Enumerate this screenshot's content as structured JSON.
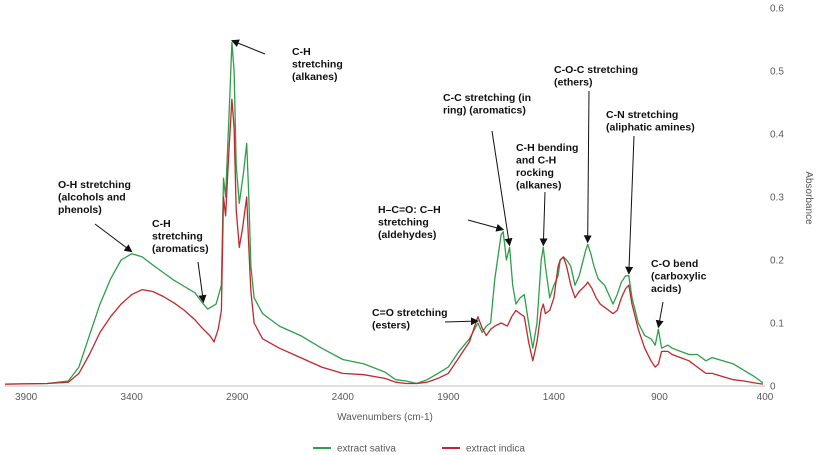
{
  "chart_data": {
    "type": "line",
    "title": "",
    "xlabel": "Wavenumbers (cm-1)",
    "ylabel": "Absorbance",
    "xlim": [
      4000,
      400
    ],
    "ylim": [
      0,
      0.6
    ],
    "x_reversed": true,
    "y_axis_side": "right",
    "grid": false,
    "legend_position": "bottom",
    "x_ticks": [
      "3900",
      "3400",
      "2900",
      "2400",
      "1900",
      "1400",
      "900",
      "400"
    ],
    "y_ticks": [
      "0",
      "0.1",
      "0.2",
      "0.3",
      "0.4",
      "0.5",
      "0.6"
    ],
    "series": [
      {
        "name": "extract sativa",
        "color": "#2e9e4a",
        "points": [
          [
            4000,
            0.003
          ],
          [
            3800,
            0.004
          ],
          [
            3700,
            0.008
          ],
          [
            3650,
            0.03
          ],
          [
            3600,
            0.08
          ],
          [
            3550,
            0.13
          ],
          [
            3500,
            0.17
          ],
          [
            3450,
            0.2
          ],
          [
            3400,
            0.21
          ],
          [
            3350,
            0.205
          ],
          [
            3300,
            0.192
          ],
          [
            3250,
            0.18
          ],
          [
            3200,
            0.168
          ],
          [
            3150,
            0.158
          ],
          [
            3100,
            0.148
          ],
          [
            3060,
            0.13
          ],
          [
            3040,
            0.122
          ],
          [
            3000,
            0.13
          ],
          [
            2975,
            0.16
          ],
          [
            2965,
            0.33
          ],
          [
            2955,
            0.3
          ],
          [
            2935,
            0.46
          ],
          [
            2925,
            0.545
          ],
          [
            2915,
            0.5
          ],
          [
            2905,
            0.35
          ],
          [
            2890,
            0.29
          ],
          [
            2870,
            0.34
          ],
          [
            2855,
            0.385
          ],
          [
            2845,
            0.3
          ],
          [
            2835,
            0.19
          ],
          [
            2820,
            0.14
          ],
          [
            2780,
            0.115
          ],
          [
            2700,
            0.095
          ],
          [
            2600,
            0.08
          ],
          [
            2500,
            0.06
          ],
          [
            2400,
            0.042
          ],
          [
            2300,
            0.035
          ],
          [
            2200,
            0.022
          ],
          [
            2150,
            0.01
          ],
          [
            2100,
            0.008
          ],
          [
            2050,
            0.004
          ],
          [
            2000,
            0.01
          ],
          [
            1950,
            0.02
          ],
          [
            1900,
            0.03
          ],
          [
            1850,
            0.055
          ],
          [
            1800,
            0.075
          ],
          [
            1760,
            0.1
          ],
          [
            1740,
            0.085
          ],
          [
            1720,
            0.095
          ],
          [
            1700,
            0.1
          ],
          [
            1680,
            0.17
          ],
          [
            1650,
            0.24
          ],
          [
            1640,
            0.245
          ],
          [
            1625,
            0.2
          ],
          [
            1610,
            0.22
          ],
          [
            1595,
            0.16
          ],
          [
            1580,
            0.13
          ],
          [
            1560,
            0.14
          ],
          [
            1540,
            0.145
          ],
          [
            1520,
            0.1
          ],
          [
            1500,
            0.06
          ],
          [
            1480,
            0.1
          ],
          [
            1460,
            0.2
          ],
          [
            1450,
            0.22
          ],
          [
            1440,
            0.19
          ],
          [
            1420,
            0.14
          ],
          [
            1400,
            0.16
          ],
          [
            1380,
            0.175
          ],
          [
            1370,
            0.2
          ],
          [
            1355,
            0.205
          ],
          [
            1340,
            0.2
          ],
          [
            1320,
            0.19
          ],
          [
            1300,
            0.16
          ],
          [
            1280,
            0.175
          ],
          [
            1250,
            0.215
          ],
          [
            1240,
            0.225
          ],
          [
            1225,
            0.21
          ],
          [
            1210,
            0.19
          ],
          [
            1190,
            0.17
          ],
          [
            1160,
            0.16
          ],
          [
            1140,
            0.145
          ],
          [
            1120,
            0.13
          ],
          [
            1100,
            0.145
          ],
          [
            1080,
            0.165
          ],
          [
            1060,
            0.175
          ],
          [
            1045,
            0.175
          ],
          [
            1030,
            0.14
          ],
          [
            1000,
            0.1
          ],
          [
            970,
            0.08
          ],
          [
            940,
            0.075
          ],
          [
            920,
            0.065
          ],
          [
            905,
            0.09
          ],
          [
            890,
            0.06
          ],
          [
            860,
            0.065
          ],
          [
            840,
            0.06
          ],
          [
            800,
            0.055
          ],
          [
            760,
            0.05
          ],
          [
            720,
            0.05
          ],
          [
            680,
            0.04
          ],
          [
            650,
            0.045
          ],
          [
            600,
            0.04
          ],
          [
            550,
            0.035
          ],
          [
            500,
            0.025
          ],
          [
            450,
            0.015
          ],
          [
            410,
            0.005
          ]
        ]
      },
      {
        "name": "extract indica",
        "color": "#c0282d",
        "points": [
          [
            4000,
            0.003
          ],
          [
            3800,
            0.004
          ],
          [
            3700,
            0.006
          ],
          [
            3650,
            0.02
          ],
          [
            3600,
            0.05
          ],
          [
            3550,
            0.085
          ],
          [
            3500,
            0.11
          ],
          [
            3450,
            0.13
          ],
          [
            3400,
            0.145
          ],
          [
            3350,
            0.153
          ],
          [
            3300,
            0.15
          ],
          [
            3250,
            0.142
          ],
          [
            3200,
            0.132
          ],
          [
            3150,
            0.12
          ],
          [
            3100,
            0.105
          ],
          [
            3060,
            0.09
          ],
          [
            3030,
            0.08
          ],
          [
            3010,
            0.07
          ],
          [
            2990,
            0.09
          ],
          [
            2975,
            0.12
          ],
          [
            2965,
            0.3
          ],
          [
            2955,
            0.27
          ],
          [
            2940,
            0.37
          ],
          [
            2925,
            0.455
          ],
          [
            2915,
            0.41
          ],
          [
            2905,
            0.28
          ],
          [
            2890,
            0.22
          ],
          [
            2875,
            0.25
          ],
          [
            2855,
            0.3
          ],
          [
            2845,
            0.22
          ],
          [
            2835,
            0.15
          ],
          [
            2820,
            0.1
          ],
          [
            2780,
            0.075
          ],
          [
            2700,
            0.06
          ],
          [
            2600,
            0.045
          ],
          [
            2500,
            0.03
          ],
          [
            2400,
            0.02
          ],
          [
            2300,
            0.018
          ],
          [
            2200,
            0.012
          ],
          [
            2150,
            0.006
          ],
          [
            2100,
            0.004
          ],
          [
            2050,
            0.004
          ],
          [
            2000,
            0.006
          ],
          [
            1950,
            0.012
          ],
          [
            1900,
            0.02
          ],
          [
            1850,
            0.045
          ],
          [
            1800,
            0.07
          ],
          [
            1760,
            0.11
          ],
          [
            1740,
            0.092
          ],
          [
            1720,
            0.08
          ],
          [
            1700,
            0.09
          ],
          [
            1680,
            0.095
          ],
          [
            1650,
            0.1
          ],
          [
            1620,
            0.095
          ],
          [
            1600,
            0.11
          ],
          [
            1580,
            0.12
          ],
          [
            1560,
            0.115
          ],
          [
            1540,
            0.11
          ],
          [
            1520,
            0.07
          ],
          [
            1500,
            0.04
          ],
          [
            1480,
            0.07
          ],
          [
            1460,
            0.12
          ],
          [
            1450,
            0.13
          ],
          [
            1440,
            0.115
          ],
          [
            1420,
            0.12
          ],
          [
            1400,
            0.14
          ],
          [
            1380,
            0.19
          ],
          [
            1370,
            0.2
          ],
          [
            1355,
            0.205
          ],
          [
            1340,
            0.19
          ],
          [
            1320,
            0.16
          ],
          [
            1300,
            0.14
          ],
          [
            1280,
            0.15
          ],
          [
            1250,
            0.16
          ],
          [
            1240,
            0.165
          ],
          [
            1220,
            0.155
          ],
          [
            1200,
            0.14
          ],
          [
            1180,
            0.13
          ],
          [
            1160,
            0.125
          ],
          [
            1140,
            0.12
          ],
          [
            1120,
            0.115
          ],
          [
            1100,
            0.12
          ],
          [
            1080,
            0.14
          ],
          [
            1060,
            0.155
          ],
          [
            1045,
            0.16
          ],
          [
            1030,
            0.13
          ],
          [
            1000,
            0.09
          ],
          [
            970,
            0.06
          ],
          [
            940,
            0.04
          ],
          [
            920,
            0.03
          ],
          [
            905,
            0.035
          ],
          [
            890,
            0.055
          ],
          [
            860,
            0.055
          ],
          [
            840,
            0.05
          ],
          [
            800,
            0.045
          ],
          [
            760,
            0.04
          ],
          [
            720,
            0.03
          ],
          [
            680,
            0.02
          ],
          [
            650,
            0.02
          ],
          [
            600,
            0.015
          ],
          [
            550,
            0.01
          ],
          [
            500,
            0.008
          ],
          [
            450,
            0.005
          ],
          [
            410,
            0.003
          ]
        ]
      }
    ],
    "annotations": [
      {
        "lines": [
          "O-H stretching",
          "(alcohols and",
          "phenols)"
        ],
        "x": 3400,
        "y": 0.21
      },
      {
        "lines": [
          "C-H",
          "stretching",
          "(aromatics)"
        ],
        "x": 3060,
        "y": 0.13
      },
      {
        "lines": [
          "C-H",
          "stretching",
          "(alkanes)"
        ],
        "x": 2925,
        "y": 0.545
      },
      {
        "lines": [
          "C=O stretching",
          "(esters)"
        ],
        "x": 1760,
        "y": 0.1
      },
      {
        "lines": [
          "H–C=O: C–H",
          "stretching",
          "(aldehydes)"
        ],
        "x": 1640,
        "y": 0.245
      },
      {
        "lines": [
          "C-C stretching (in",
          "ring) (aromatics)"
        ],
        "x": 1610,
        "y": 0.22
      },
      {
        "lines": [
          "C-H bending",
          "and C-H",
          "rocking",
          "(alkanes)"
        ],
        "x": 1450,
        "y": 0.22
      },
      {
        "lines": [
          "C-O-C stretching",
          "(ethers)"
        ],
        "x": 1240,
        "y": 0.225
      },
      {
        "lines": [
          "C-N stretching",
          "(aliphatic amines)"
        ],
        "x": 1045,
        "y": 0.175
      },
      {
        "lines": [
          "C-O bend",
          "(carboxylic",
          "acids)"
        ],
        "x": 905,
        "y": 0.09
      }
    ]
  }
}
